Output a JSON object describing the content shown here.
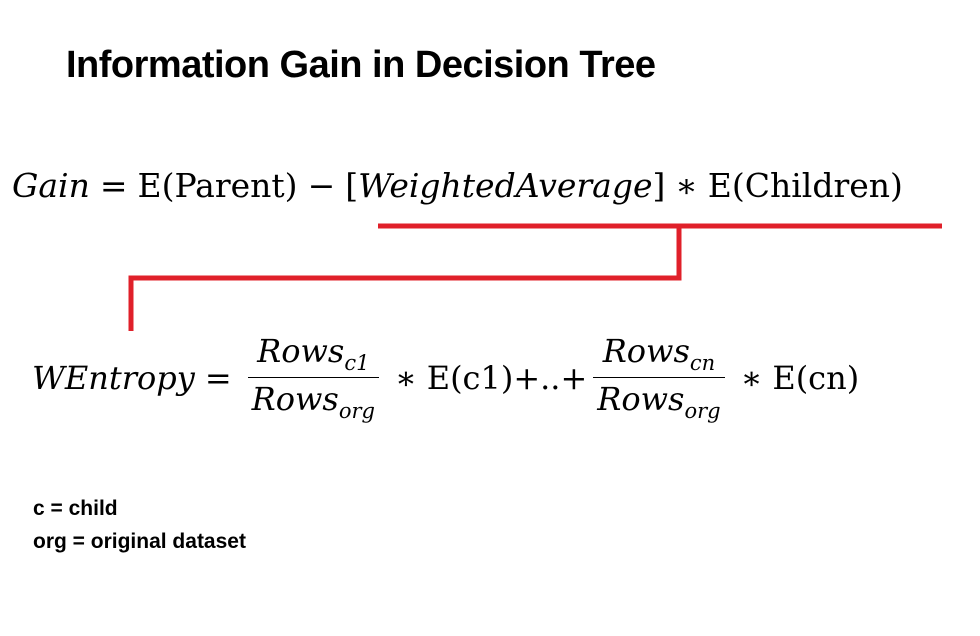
{
  "title": "Information Gain in Decision Tree",
  "equation1": {
    "lhs": "Gain",
    "eq": "=",
    "parent_term": "E(Parent)",
    "minus": "−",
    "weighted": "WeightedAverage",
    "times": "∗",
    "children_term": "E(Children)"
  },
  "equation2": {
    "lhs": "WEntropy",
    "eq": "=",
    "frac1_num_base": "Rows",
    "frac1_num_sub": "c1",
    "frac1_den_base": "Rows",
    "frac1_den_sub": "org",
    "times1": "∗",
    "term1": "E(c1)+..+",
    "frac2_num_base": "Rows",
    "frac2_num_sub": "cn",
    "frac2_den_base": "Rows",
    "frac2_den_sub": "org",
    "times2": "∗",
    "term2": "E(cn)"
  },
  "legend": {
    "line1": "c = child",
    "line2": "org = original dataset"
  },
  "colors": {
    "connector": "#e0202a"
  }
}
